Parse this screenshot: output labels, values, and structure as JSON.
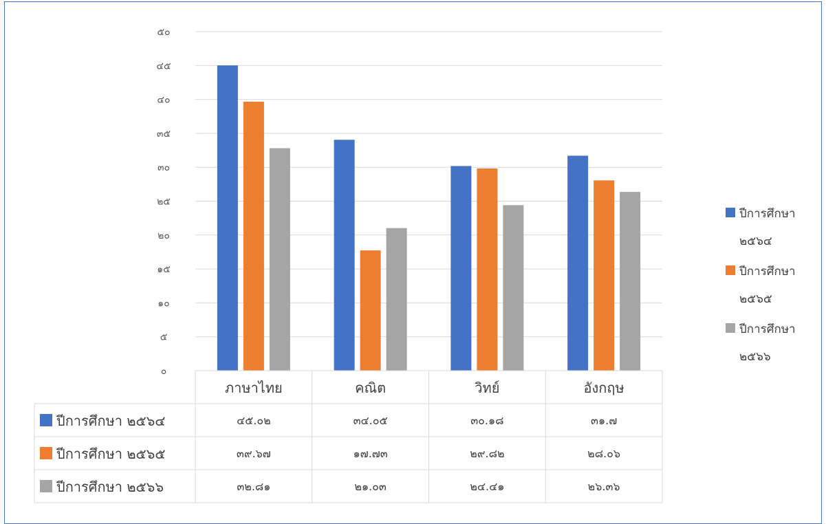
{
  "chart_data": {
    "type": "bar",
    "categories": [
      "ภาษาไทย",
      "คณิต",
      "วิทย์",
      "อังกฤษ"
    ],
    "series": [
      {
        "name": "ปีการศึกษา ๒๕๖๔",
        "color": "#4472c4",
        "values": [
          45.02,
          34.05,
          30.18,
          31.7
        ],
        "labels": [
          "๔๕.๐๒",
          "๓๔.๐๕",
          "๓๐.๑๘",
          "๓๑.๗"
        ]
      },
      {
        "name": "ปีการศึกษา ๒๕๖๕",
        "color": "#ed7d31",
        "values": [
          39.67,
          17.73,
          29.82,
          28.06
        ],
        "labels": [
          "๓๙.๖๗",
          "๑๗.๗๓",
          "๒๙.๘๒",
          "๒๘.๐๖"
        ]
      },
      {
        "name": "ปีการศึกษา ๒๕๖๖",
        "color": "#a5a5a5",
        "values": [
          32.81,
          21.03,
          24.41,
          26.36
        ],
        "labels": [
          "๓๒.๘๑",
          "๒๑.๐๓",
          "๒๔.๔๑",
          "๒๖.๓๖"
        ]
      }
    ],
    "legend": [
      {
        "line1": "ปีการศึกษา",
        "line2": "๒๕๖๔"
      },
      {
        "line1": "ปีการศึกษา",
        "line2": "๒๕๖๕"
      },
      {
        "line1": "ปีการศึกษา",
        "line2": "๒๕๖๖"
      }
    ],
    "ylim": [
      0,
      50
    ],
    "yticks": [
      0,
      5,
      10,
      15,
      20,
      25,
      30,
      35,
      40,
      45,
      50
    ],
    "ytick_labels": [
      "๐",
      "๕",
      "๑๐",
      "๑๕",
      "๒๐",
      "๒๕",
      "๓๐",
      "๓๕",
      "๔๐",
      "๔๕",
      "๕๐"
    ],
    "grid": true,
    "legend_position": "right",
    "data_table": true
  }
}
